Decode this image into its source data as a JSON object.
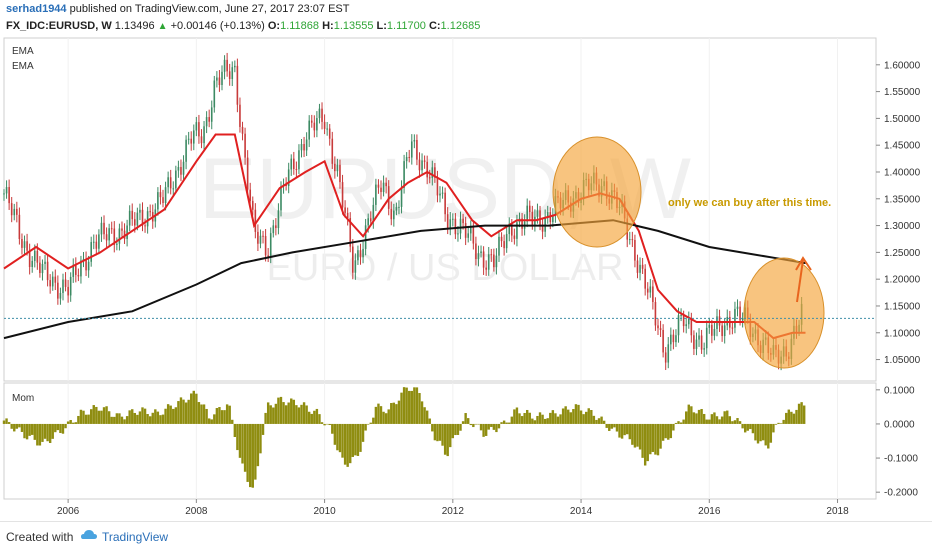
{
  "header": {
    "author": "serhad1944",
    "published_text": "published on TradingView.com, June 27, 2017 23:07 EST",
    "symbol": "FX_IDC:EURUSD, W",
    "last": "1.13496",
    "change": "+0.00146 (+0.13%)",
    "o_label": "O:",
    "o_value": "1.11868",
    "h_label": "H:",
    "h_value": "1.13555",
    "l_label": "L:",
    "l_value": "1.11700",
    "c_label": "C:",
    "c_value": "1.12685"
  },
  "indicators": {
    "ema1": "EMA",
    "ema2": "EMA",
    "mom": "Mom"
  },
  "watermark": {
    "symbol": "EURUSD, W",
    "name": "EURO / US DOLLAR"
  },
  "annotation": {
    "text": "only we can buy after this time."
  },
  "footer": {
    "created": "Created with",
    "brand": "TradingView"
  },
  "colors": {
    "ema_fast": "#e02020",
    "ema_slow": "#111111",
    "momentum": "#8f8d10",
    "candle_up": "#3c8a63",
    "candle_down": "#c83a3a",
    "highlight": "#f5a53a",
    "last_line": "#3f8fa8",
    "annotation": "#c89a00"
  },
  "chart_data": [
    {
      "type": "line",
      "title": "",
      "series": [
        {
          "name": "EMA",
          "x": [
            2005.0,
            2005.5,
            2006.0,
            2006.5,
            2007.0,
            2007.5,
            2008.0,
            2008.3,
            2008.6,
            2008.9,
            2009.3,
            2009.7,
            2010.0,
            2010.3,
            2010.6,
            2011.0,
            2011.3,
            2011.6,
            2011.9,
            2012.3,
            2012.6,
            2013.0,
            2013.3,
            2013.6,
            2014.0,
            2014.3,
            2014.6,
            2014.9,
            2015.2,
            2015.5,
            2015.8,
            2016.1,
            2016.4,
            2016.7,
            2017.0,
            2017.3,
            2017.5
          ],
          "values": [
            1.22,
            1.26,
            1.22,
            1.25,
            1.29,
            1.33,
            1.42,
            1.47,
            1.47,
            1.3,
            1.37,
            1.4,
            1.42,
            1.32,
            1.28,
            1.35,
            1.38,
            1.4,
            1.38,
            1.31,
            1.28,
            1.31,
            1.31,
            1.32,
            1.35,
            1.36,
            1.35,
            1.29,
            1.18,
            1.14,
            1.12,
            1.12,
            1.12,
            1.12,
            1.09,
            1.1,
            1.1
          ]
        },
        {
          "name": "EMA",
          "x": [
            2005.0,
            2006.0,
            2007.0,
            2008.0,
            2008.7,
            2009.5,
            2010.5,
            2011.5,
            2012.5,
            2013.5,
            2014.5,
            2015.2,
            2016.0,
            2016.5,
            2017.0,
            2017.5
          ],
          "values": [
            1.09,
            1.12,
            1.14,
            1.19,
            1.23,
            1.25,
            1.27,
            1.29,
            1.3,
            1.3,
            1.31,
            1.29,
            1.26,
            1.25,
            1.24,
            1.23
          ]
        }
      ],
      "price_series": {
        "name": "EURUSD",
        "x": [
          2005.0,
          2005.3,
          2005.6,
          2006.0,
          2006.4,
          2006.8,
          2007.1,
          2007.5,
          2007.9,
          2008.1,
          2008.3,
          2008.6,
          2008.9,
          2009.1,
          2009.4,
          2009.7,
          2010.0,
          2010.2,
          2010.45,
          2010.6,
          2010.9,
          2011.1,
          2011.35,
          2011.6,
          2011.9,
          2012.1,
          2012.4,
          2012.65,
          2012.9,
          2013.2,
          2013.5,
          2013.8,
          2014.1,
          2014.35,
          2014.6,
          2014.85,
          2015.1,
          2015.3,
          2015.6,
          2015.9,
          2016.2,
          2016.4,
          2016.6,
          2016.9,
          2017.0,
          2017.2,
          2017.45
        ],
        "values": [
          1.36,
          1.27,
          1.21,
          1.18,
          1.27,
          1.29,
          1.31,
          1.35,
          1.46,
          1.47,
          1.57,
          1.59,
          1.28,
          1.26,
          1.38,
          1.47,
          1.5,
          1.4,
          1.22,
          1.28,
          1.38,
          1.32,
          1.45,
          1.41,
          1.32,
          1.3,
          1.25,
          1.23,
          1.3,
          1.31,
          1.32,
          1.35,
          1.37,
          1.38,
          1.33,
          1.25,
          1.15,
          1.07,
          1.12,
          1.08,
          1.12,
          1.13,
          1.12,
          1.07,
          1.05,
          1.07,
          1.13
        ]
      },
      "xlim": [
        2005.0,
        2018.6
      ],
      "ylim": [
        1.01,
        1.65
      ],
      "y_ticks": [
        "1.05000",
        "1.10000",
        "1.15000",
        "1.20000",
        "1.25000",
        "1.30000",
        "1.35000",
        "1.40000",
        "1.45000",
        "1.50000",
        "1.55000",
        "1.60000"
      ],
      "x_ticks": [
        "2006",
        "2008",
        "2010",
        "2012",
        "2014",
        "2016",
        "2018"
      ],
      "last_value": 1.12685
    },
    {
      "type": "bar",
      "title": "Mom",
      "x_anchors": [
        2005.0,
        2005.3,
        2005.6,
        2005.9,
        2006.2,
        2006.5,
        2006.8,
        2007.1,
        2007.4,
        2007.7,
        2008.0,
        2008.2,
        2008.5,
        2008.7,
        2008.9,
        2009.1,
        2009.3,
        2009.6,
        2009.9,
        2010.1,
        2010.3,
        2010.5,
        2010.8,
        2011.0,
        2011.3,
        2011.5,
        2011.7,
        2011.9,
        2012.2,
        2012.5,
        2012.8,
        2013.0,
        2013.3,
        2013.6,
        2013.9,
        2014.2,
        2014.5,
        2014.8,
        2015.0,
        2015.2,
        2015.4,
        2015.7,
        2016.0,
        2016.3,
        2016.6,
        2016.9,
        2017.1,
        2017.3,
        2017.5
      ],
      "values": [
        0.01,
        -0.03,
        -0.06,
        -0.02,
        0.03,
        0.05,
        0.02,
        0.04,
        0.03,
        0.06,
        0.09,
        0.02,
        0.06,
        -0.12,
        -0.2,
        0.05,
        0.07,
        0.06,
        0.03,
        -0.02,
        -0.12,
        -0.1,
        0.05,
        0.04,
        0.11,
        0.09,
        -0.03,
        -0.09,
        0.02,
        -0.03,
        0.0,
        0.04,
        0.02,
        0.03,
        0.05,
        0.03,
        -0.02,
        -0.05,
        -0.11,
        -0.08,
        -0.03,
        0.05,
        0.02,
        0.03,
        -0.02,
        -0.07,
        0.01,
        0.04,
        0.06
      ],
      "ylim": [
        -0.22,
        0.12
      ],
      "y_ticks": [
        "0.1000",
        "0.0000",
        "-0.1000",
        "-0.2000"
      ]
    }
  ]
}
